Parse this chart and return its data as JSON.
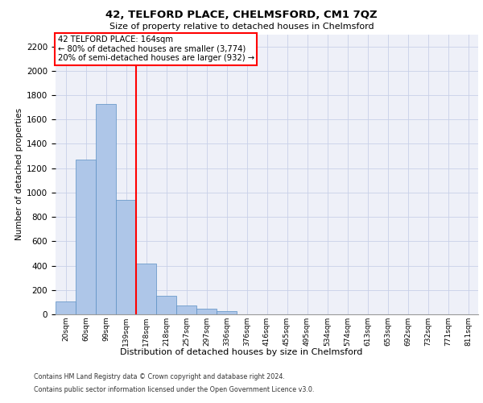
{
  "title": "42, TELFORD PLACE, CHELMSFORD, CM1 7QZ",
  "subtitle": "Size of property relative to detached houses in Chelmsford",
  "xlabel": "Distribution of detached houses by size in Chelmsford",
  "ylabel": "Number of detached properties",
  "categories": [
    "20sqm",
    "60sqm",
    "99sqm",
    "139sqm",
    "178sqm",
    "218sqm",
    "257sqm",
    "297sqm",
    "336sqm",
    "376sqm",
    "416sqm",
    "455sqm",
    "495sqm",
    "534sqm",
    "574sqm",
    "613sqm",
    "653sqm",
    "692sqm",
    "732sqm",
    "771sqm",
    "811sqm"
  ],
  "bar_values": [
    105,
    1270,
    1730,
    940,
    420,
    150,
    75,
    45,
    25,
    0,
    0,
    0,
    0,
    0,
    0,
    0,
    0,
    0,
    0,
    0,
    0
  ],
  "bar_color": "#aec6e8",
  "bar_edge_color": "#5a8fc3",
  "grid_color": "#c8d0e8",
  "background_color": "#eef0f8",
  "vline_color": "red",
  "annotation_text": "42 TELFORD PLACE: 164sqm\n← 80% of detached houses are smaller (3,774)\n20% of semi-detached houses are larger (932) →",
  "annotation_box_color": "white",
  "annotation_box_edge": "red",
  "ylim": [
    0,
    2300
  ],
  "yticks": [
    0,
    200,
    400,
    600,
    800,
    1000,
    1200,
    1400,
    1600,
    1800,
    2000,
    2200
  ],
  "footer_line1": "Contains HM Land Registry data © Crown copyright and database right 2024.",
  "footer_line2": "Contains public sector information licensed under the Open Government Licence v3.0."
}
